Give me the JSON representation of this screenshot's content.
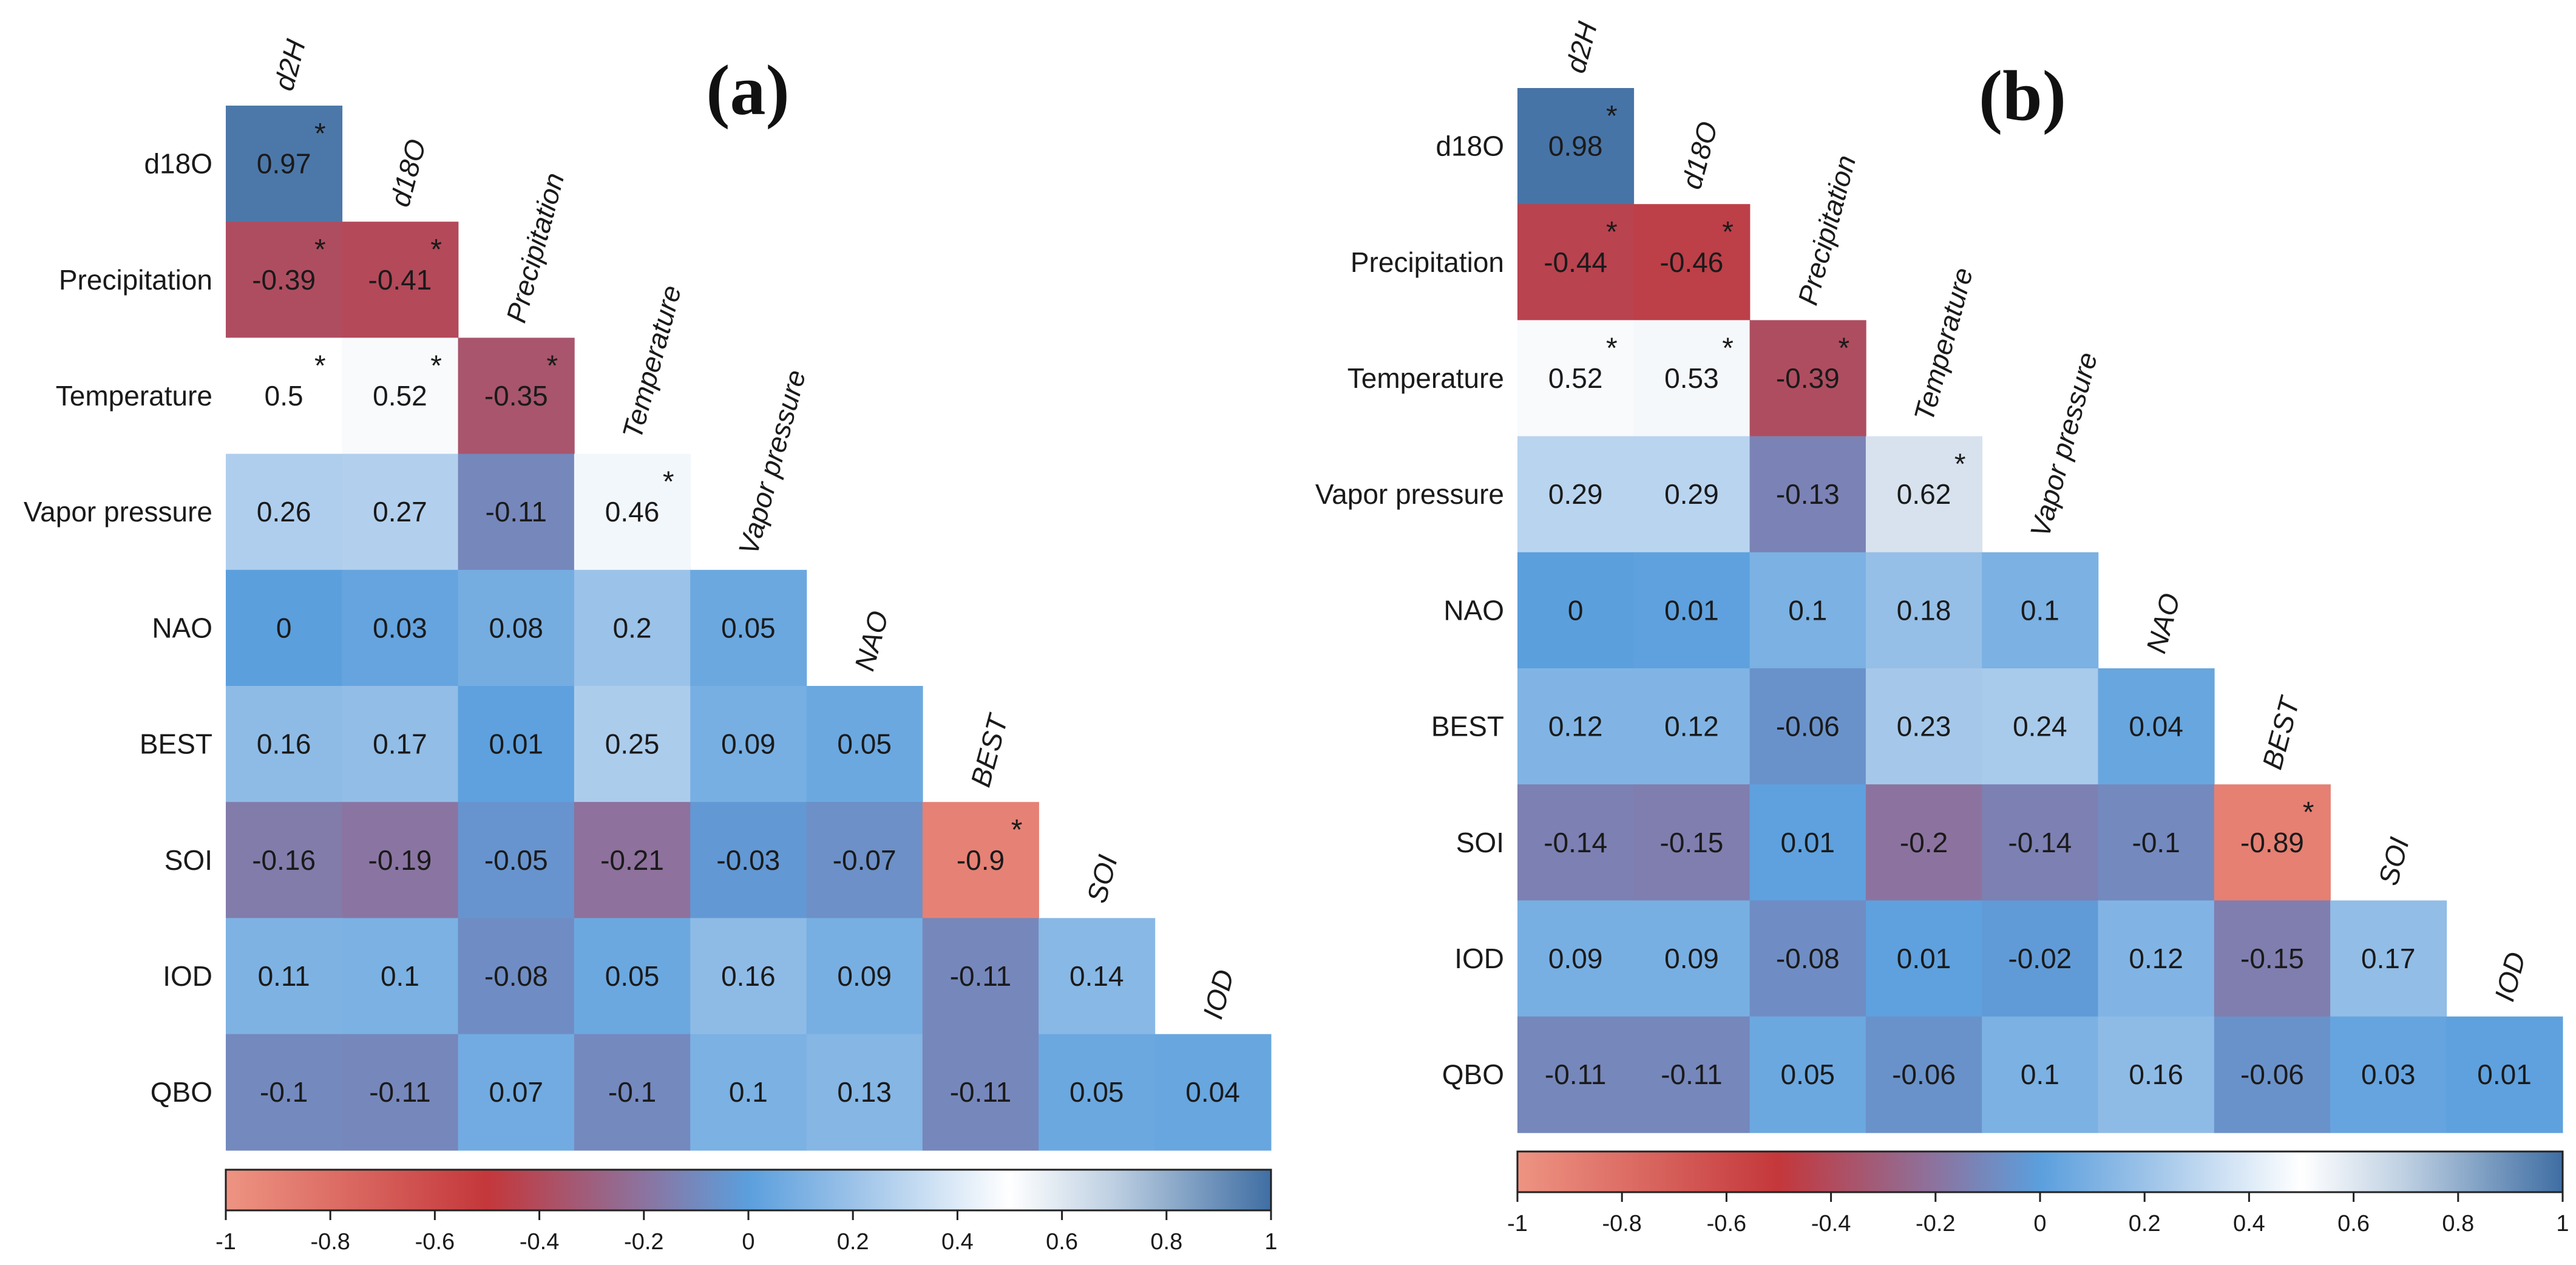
{
  "chart_data": [
    {
      "type": "heatmap",
      "title": "(a)",
      "variables": [
        "d2H",
        "d18O",
        "Precipitation",
        "Temperature",
        "Vapor pressure",
        "NAO",
        "BEST",
        "SOI",
        "IOD",
        "QBO"
      ],
      "matrix": [
        [
          0.97
        ],
        [
          -0.39,
          -0.41
        ],
        [
          0.5,
          0.52,
          -0.35
        ],
        [
          0.26,
          0.27,
          -0.11,
          0.46
        ],
        [
          0,
          0.03,
          0.08,
          0.2,
          0.05
        ],
        [
          0.16,
          0.17,
          0.01,
          0.25,
          0.09,
          0.05
        ],
        [
          -0.16,
          -0.19,
          -0.05,
          -0.21,
          -0.03,
          -0.07,
          -0.9
        ],
        [
          0.11,
          0.1,
          -0.08,
          0.05,
          0.16,
          0.09,
          -0.11,
          0.14
        ],
        [
          -0.1,
          -0.11,
          0.07,
          -0.1,
          0.1,
          0.13,
          -0.11,
          0.05,
          0.04
        ]
      ],
      "significant": [
        [
          true
        ],
        [
          true,
          true
        ],
        [
          true,
          true,
          true
        ],
        [
          false,
          false,
          false,
          true
        ],
        [
          false,
          false,
          false,
          false,
          false
        ],
        [
          false,
          false,
          false,
          false,
          false,
          false
        ],
        [
          false,
          false,
          false,
          false,
          false,
          false,
          true
        ],
        [
          false,
          false,
          false,
          false,
          false,
          false,
          false,
          false
        ],
        [
          false,
          false,
          false,
          false,
          false,
          false,
          false,
          false,
          false
        ]
      ],
      "significance_marker": "*",
      "colorbar": {
        "range": [
          -1,
          1
        ],
        "ticks": [
          "-1",
          "-0.8",
          "-0.6",
          "-0.4",
          "-0.2",
          "0",
          "0.2",
          "0.4",
          "0.6",
          "0.8",
          "1"
        ],
        "stops": [
          {
            "value": -1.0,
            "color": "#ee9483"
          },
          {
            "value": -0.5,
            "color": "#c4373b"
          },
          {
            "value": -0.2,
            "color": "#8c739f"
          },
          {
            "value": 0.0,
            "color": "#5b9fdd"
          },
          {
            "value": 0.2,
            "color": "#9bc2e8"
          },
          {
            "value": 0.5,
            "color": "#ffffff"
          },
          {
            "value": 0.7,
            "color": "#bdcfe2"
          },
          {
            "value": 1.0,
            "color": "#3f6ea3"
          }
        ]
      }
    },
    {
      "type": "heatmap",
      "title": "(b)",
      "variables": [
        "d2H",
        "d18O",
        "Precipitation",
        "Temperature",
        "Vapor pressure",
        "NAO",
        "BEST",
        "SOI",
        "IOD",
        "QBO"
      ],
      "matrix": [
        [
          0.98
        ],
        [
          -0.44,
          -0.46
        ],
        [
          0.52,
          0.53,
          -0.39
        ],
        [
          0.29,
          0.29,
          -0.13,
          0.62
        ],
        [
          0,
          0.01,
          0.1,
          0.18,
          0.1
        ],
        [
          0.12,
          0.12,
          -0.06,
          0.23,
          0.24,
          0.04
        ],
        [
          -0.14,
          -0.15,
          0.01,
          -0.2,
          -0.14,
          -0.1,
          -0.89
        ],
        [
          0.09,
          0.09,
          -0.08,
          0.01,
          -0.02,
          0.12,
          -0.15,
          0.17
        ],
        [
          -0.11,
          -0.11,
          0.05,
          -0.06,
          0.1,
          0.16,
          -0.06,
          0.03,
          0.01
        ]
      ],
      "significant": [
        [
          true
        ],
        [
          true,
          true
        ],
        [
          true,
          true,
          true
        ],
        [
          false,
          false,
          false,
          true
        ],
        [
          false,
          false,
          false,
          false,
          false
        ],
        [
          false,
          false,
          false,
          false,
          false,
          false
        ],
        [
          false,
          false,
          false,
          false,
          false,
          false,
          true
        ],
        [
          false,
          false,
          false,
          false,
          false,
          false,
          false,
          false
        ],
        [
          false,
          false,
          false,
          false,
          false,
          false,
          false,
          false,
          false
        ]
      ],
      "significance_marker": "*",
      "colorbar": {
        "range": [
          -1,
          1
        ],
        "ticks": [
          "-1",
          "-0.8",
          "-0.6",
          "-0.4",
          "-0.2",
          "0",
          "0.2",
          "0.4",
          "0.6",
          "0.8",
          "1"
        ],
        "stops": [
          {
            "value": -1.0,
            "color": "#ee9483"
          },
          {
            "value": -0.5,
            "color": "#c4373b"
          },
          {
            "value": -0.2,
            "color": "#8c739f"
          },
          {
            "value": 0.0,
            "color": "#5b9fdd"
          },
          {
            "value": 0.2,
            "color": "#9bc2e8"
          },
          {
            "value": 0.5,
            "color": "#ffffff"
          },
          {
            "value": 0.7,
            "color": "#bdcfe2"
          },
          {
            "value": 1.0,
            "color": "#3f6ea3"
          }
        ]
      }
    }
  ]
}
